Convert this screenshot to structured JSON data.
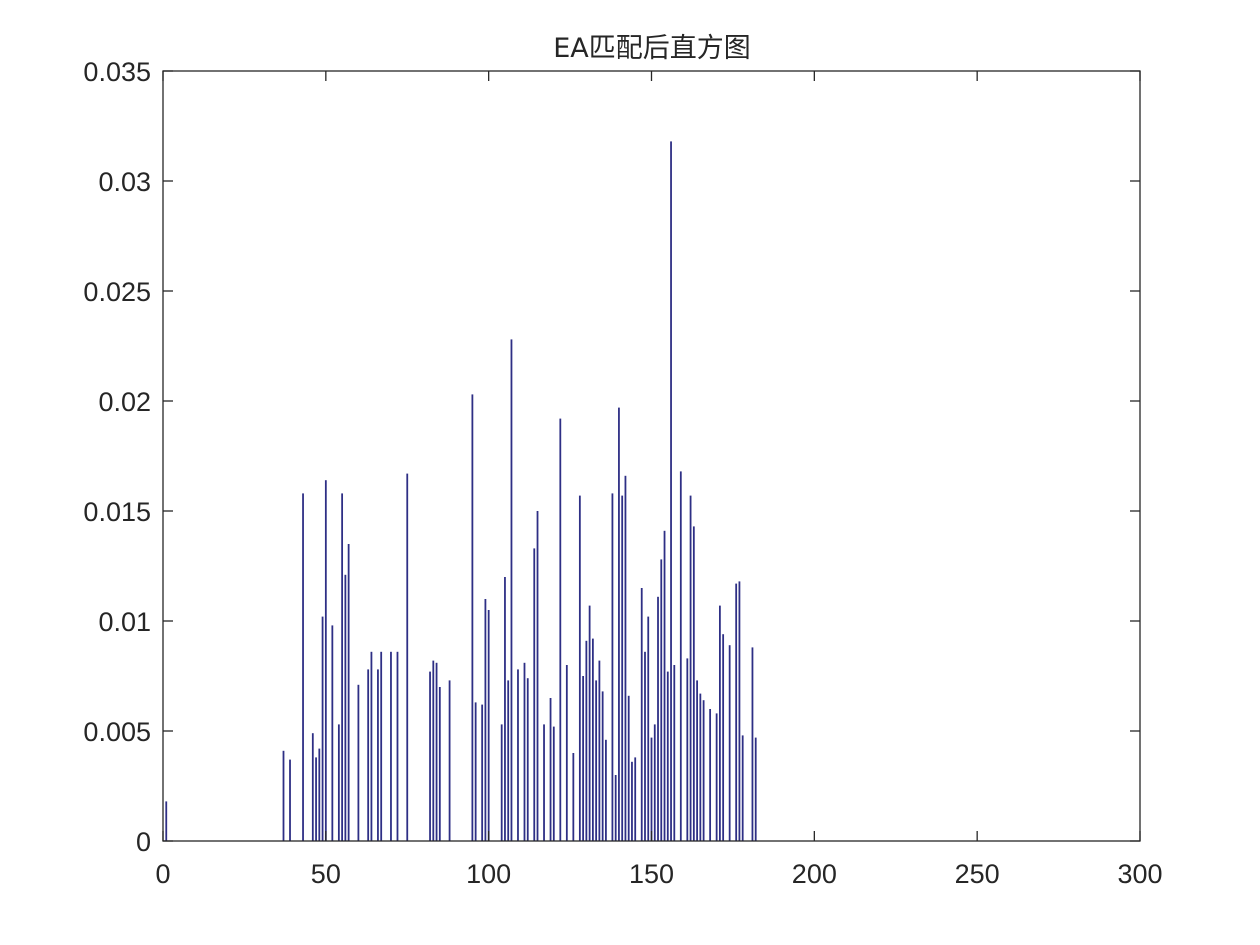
{
  "chart_data": {
    "type": "bar",
    "title": "EA匹配后直方图",
    "xlabel": "",
    "ylabel": "",
    "xlim": [
      0,
      300
    ],
    "ylim": [
      0,
      0.035
    ],
    "xticks": [
      "0",
      "50",
      "100",
      "150",
      "200",
      "250",
      "300"
    ],
    "yticks": [
      "0",
      "0.005",
      "0.01",
      "0.015",
      "0.02",
      "0.025",
      "0.03",
      "0.035"
    ],
    "grid": false,
    "bar_color": "#2e2f85",
    "x": [
      1,
      37,
      39,
      43,
      46,
      47,
      48,
      49,
      50,
      52,
      54,
      55,
      56,
      57,
      60,
      63,
      64,
      66,
      67,
      70,
      72,
      75,
      82,
      83,
      84,
      85,
      88,
      95,
      96,
      98,
      99,
      100,
      104,
      105,
      106,
      107,
      109,
      111,
      112,
      114,
      115,
      117,
      119,
      120,
      122,
      124,
      126,
      128,
      129,
      130,
      131,
      132,
      133,
      134,
      135,
      136,
      138,
      139,
      140,
      141,
      142,
      143,
      144,
      145,
      147,
      148,
      149,
      150,
      151,
      152,
      153,
      154,
      155,
      156,
      157,
      159,
      161,
      162,
      163,
      164,
      165,
      166,
      168,
      170,
      171,
      172,
      174,
      176,
      177,
      178,
      181,
      182
    ],
    "values": [
      0.0018,
      0.0041,
      0.0037,
      0.0158,
      0.0049,
      0.0038,
      0.0042,
      0.0102,
      0.0164,
      0.0098,
      0.0053,
      0.0158,
      0.0121,
      0.0135,
      0.0071,
      0.0078,
      0.0086,
      0.0078,
      0.0086,
      0.0086,
      0.0086,
      0.0167,
      0.0077,
      0.0082,
      0.0081,
      0.007,
      0.0073,
      0.0203,
      0.0063,
      0.0062,
      0.011,
      0.0105,
      0.0053,
      0.012,
      0.0073,
      0.0228,
      0.0078,
      0.0081,
      0.0074,
      0.0133,
      0.015,
      0.0053,
      0.0065,
      0.0052,
      0.0192,
      0.008,
      0.004,
      0.0157,
      0.0075,
      0.0091,
      0.0107,
      0.0092,
      0.0073,
      0.0082,
      0.0068,
      0.0046,
      0.0158,
      0.003,
      0.0197,
      0.0157,
      0.0166,
      0.0066,
      0.0036,
      0.0038,
      0.0115,
      0.0086,
      0.0102,
      0.0047,
      0.0053,
      0.0111,
      0.0128,
      0.0141,
      0.0077,
      0.0318,
      0.008,
      0.0168,
      0.0083,
      0.0157,
      0.0143,
      0.0073,
      0.0067,
      0.0064,
      0.006,
      0.0058,
      0.0107,
      0.0094,
      0.0089,
      0.0117,
      0.0118,
      0.0048,
      0.0088,
      0.0047
    ]
  }
}
